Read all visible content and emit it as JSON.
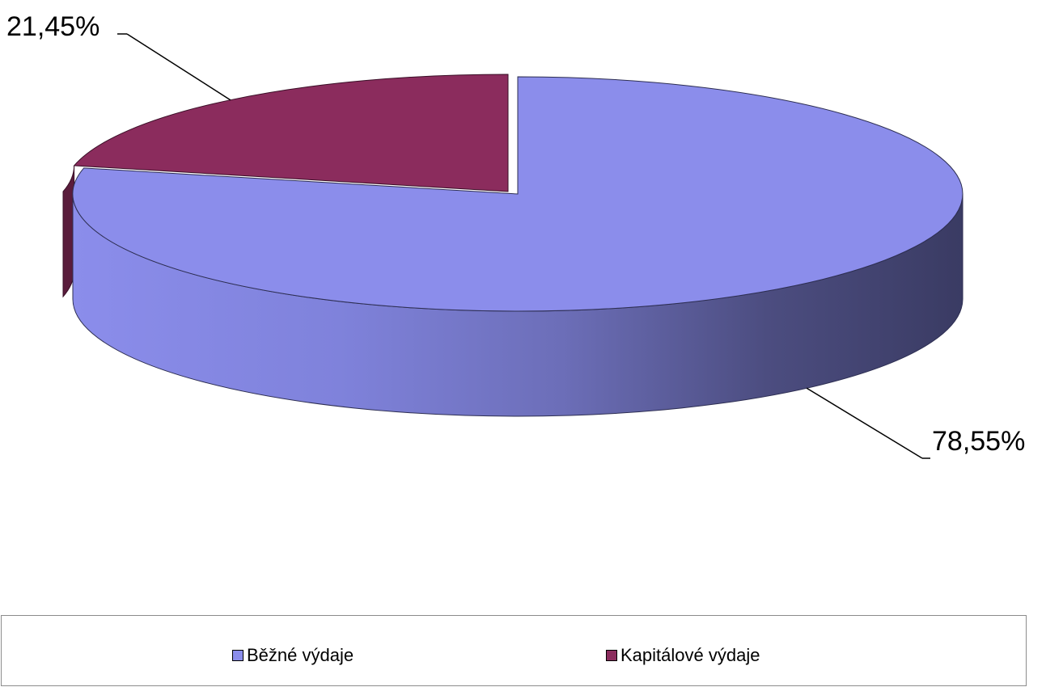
{
  "chart_data": {
    "type": "pie",
    "style": "3d",
    "series": [
      {
        "name": "Běžné výdaje",
        "value": 78.55,
        "label": "78,55%",
        "color": "#8b8deb"
      },
      {
        "name": "Kapitálové výdaje",
        "value": 21.45,
        "label": "21,45%",
        "color": "#8b2c5d"
      }
    ],
    "legend_position": "bottom"
  },
  "legend": {
    "items": [
      {
        "label": "Běžné výdaje",
        "color": "#8b8deb"
      },
      {
        "label": "Kapitálové výdaje",
        "color": "#8b2c5d"
      }
    ]
  }
}
